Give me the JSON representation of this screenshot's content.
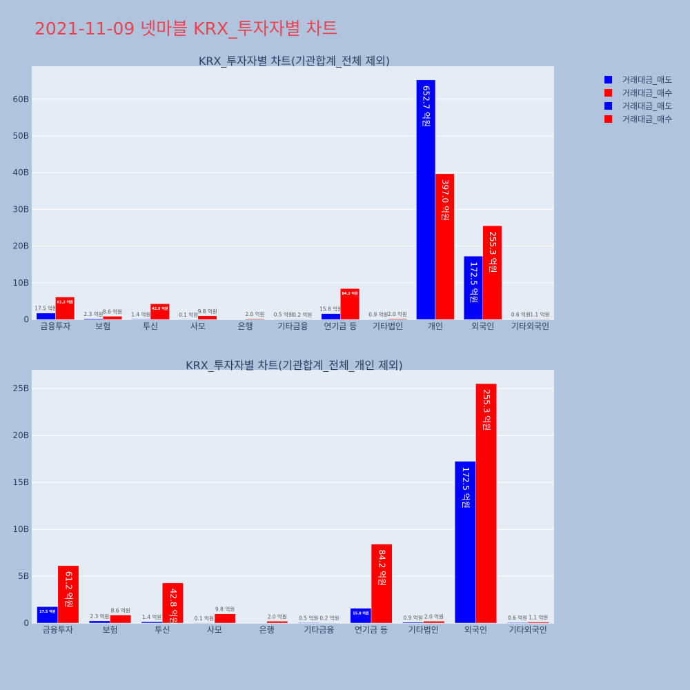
{
  "page_title": "2021-11-09 넷마블 KRX_투자자별 차트",
  "colors": {
    "sell": "#0000ff",
    "buy": "#ff0000",
    "plot_bg": "#e5ecf6",
    "page_bg": "#b0c4de"
  },
  "legend": [
    {
      "label": "거래대금_매도",
      "color": "#0000ff"
    },
    {
      "label": "거래대금_매수",
      "color": "#ff0000"
    },
    {
      "label": "거래대금_매도",
      "color": "#0000ff"
    },
    {
      "label": "거래대금_매수",
      "color": "#ff0000"
    }
  ],
  "chart_data": [
    {
      "type": "bar",
      "title": "KRX_투자자별 차트(기관합계_전체 제외)",
      "categories": [
        "금융투자",
        "보험",
        "투신",
        "사모",
        "은행",
        "기타금융",
        "연기금 등",
        "기타법인",
        "개인",
        "외국인",
        "기타외국인"
      ],
      "series": [
        {
          "name": "거래대금_매도",
          "values": [
            1.75,
            0.23,
            0.14,
            0.01,
            0.0,
            0.05,
            1.58,
            0.09,
            65.27,
            17.25,
            0.06
          ],
          "labels": [
            "17.5 억원",
            "2.3 억원",
            "1.4 억원",
            "0.1 억원",
            "",
            "0.5 억원",
            "15.8 억원",
            "0.9 억원",
            "652.7 억원",
            "172.5 억원",
            "0.6 억원"
          ]
        },
        {
          "name": "거래대금_매수",
          "values": [
            6.12,
            0.86,
            4.28,
            0.98,
            0.2,
            0.02,
            8.42,
            0.2,
            39.7,
            25.53,
            0.11
          ],
          "labels": [
            "61.2 억원",
            "8.6 억원",
            "42.8 억원",
            "9.8 억원",
            "2.0 억원",
            "0.2 억원",
            "84.2 억원",
            "2.0 억원",
            "397.0 억원",
            "255.3 억원",
            "1.1 억원"
          ]
        }
      ],
      "ylim": [
        0,
        69
      ],
      "yticks": [
        0,
        10,
        20,
        30,
        40,
        50,
        60
      ],
      "ytick_labels": [
        "0",
        "10B",
        "20B",
        "30B",
        "40B",
        "50B",
        "60B"
      ]
    },
    {
      "type": "bar",
      "title": "KRX_투자자별 차트(기관합계_전체_개인 제외)",
      "categories": [
        "금융투자",
        "보험",
        "투신",
        "사모",
        "은행",
        "기타금융",
        "연기금 등",
        "기타법인",
        "외국인",
        "기타외국인"
      ],
      "series": [
        {
          "name": "거래대금_매도",
          "values": [
            1.75,
            0.23,
            0.14,
            0.01,
            0.0,
            0.05,
            1.58,
            0.09,
            17.25,
            0.06
          ],
          "labels": [
            "17.5 억원",
            "2.3 억원",
            "1.4 억원",
            "0.1 억원",
            "",
            "0.5 억원",
            "15.8 억원",
            "0.9 억원",
            "172.5 억원",
            "0.6 억원"
          ]
        },
        {
          "name": "거래대금_매수",
          "values": [
            6.12,
            0.86,
            4.28,
            0.98,
            0.2,
            0.02,
            8.42,
            0.2,
            25.53,
            0.11
          ],
          "labels": [
            "61.2 억원",
            "8.6 억원",
            "42.8 억원",
            "9.8 억원",
            "2.0 억원",
            "0.2 억원",
            "84.2 억원",
            "2.0 억원",
            "255.3 억원",
            "1.1 억원"
          ]
        }
      ],
      "ylim": [
        0,
        27
      ],
      "yticks": [
        0,
        5,
        10,
        15,
        20,
        25
      ],
      "ytick_labels": [
        "0",
        "5B",
        "10B",
        "15B",
        "20B",
        "25B"
      ]
    }
  ]
}
